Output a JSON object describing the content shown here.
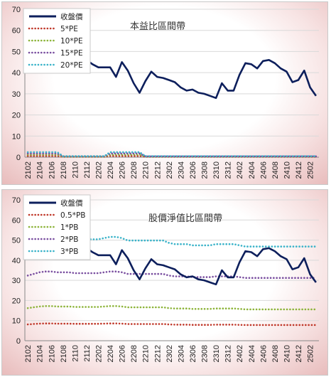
{
  "chart_data": [
    {
      "type": "line",
      "title": "本益比區間帶",
      "ylim": [
        0,
        70
      ],
      "yticks": [
        0,
        10,
        20,
        30,
        40,
        50,
        60,
        70
      ],
      "grid": true,
      "legend": "top-left",
      "categories": [
        "2102",
        "2103",
        "2104",
        "2105",
        "2106",
        "2107",
        "2108",
        "2109",
        "2110",
        "2111",
        "2112",
        "2201",
        "2202",
        "2203",
        "2204",
        "2205",
        "2206",
        "2207",
        "2208",
        "2209",
        "2210",
        "2211",
        "2212",
        "2301",
        "2302",
        "2303",
        "2304",
        "2305",
        "2306",
        "2307",
        "2308",
        "2309",
        "2310",
        "2311",
        "2312",
        "2401",
        "2402",
        "2403",
        "2404",
        "2405",
        "2406",
        "2407",
        "2408",
        "2409",
        "2410",
        "2411",
        "2412",
        "2501",
        "2502",
        "2503"
      ],
      "xtick_labels": [
        "2102",
        "2104",
        "2106",
        "2108",
        "2110",
        "2112",
        "2202",
        "2204",
        "2206",
        "2208",
        "2210",
        "2212",
        "2302",
        "2304",
        "2306",
        "2308",
        "2310",
        "2312",
        "2402",
        "2404",
        "2406",
        "2408",
        "2410",
        "2412",
        "2502"
      ],
      "series": [
        {
          "name": "收盤價",
          "color": "#0d1f5c",
          "style": "solid",
          "values": [
            null,
            null,
            null,
            null,
            null,
            null,
            null,
            null,
            null,
            null,
            46,
            44,
            42.5,
            42.5,
            42.5,
            38,
            45,
            41,
            35,
            30.5,
            36,
            40.5,
            38,
            37.5,
            36.5,
            35.5,
            33,
            31.5,
            32,
            30.5,
            30,
            29,
            28,
            35,
            31.5,
            31.5,
            39,
            44.5,
            44,
            42,
            45.5,
            46,
            44.5,
            42,
            40.5,
            35.5,
            36.5,
            41,
            33,
            29
          ]
        },
        {
          "name": "5*PE",
          "color": "#c0392b",
          "style": "dotted",
          "values": [
            0.6,
            0.6,
            0.6,
            0.6,
            0.6,
            0.6,
            0.2,
            0.2,
            0.2,
            0.2,
            0.2,
            0.2,
            0.2,
            0.2,
            0.6,
            0.6,
            0.6,
            0.6,
            0.6,
            0.6,
            0.2,
            0.2,
            0.2,
            0.2,
            0.2,
            0.2,
            0.2,
            0.2,
            0.2,
            0.2,
            0.2,
            0.2,
            0.2,
            0.2,
            0.2,
            0.2,
            0.2,
            0.2,
            0.2,
            0.2,
            0.2,
            0.2,
            0.2,
            0.2,
            0.2,
            0.2,
            0.2,
            0.2,
            0.2,
            0.2
          ]
        },
        {
          "name": "10*PE",
          "color": "#8db43a",
          "style": "dotted",
          "values": [
            1.2,
            1.2,
            1.2,
            1.2,
            1.2,
            1.2,
            0.3,
            0.3,
            0.3,
            0.3,
            0.3,
            0.3,
            0.3,
            0.3,
            1.2,
            1.2,
            1.2,
            1.2,
            1.2,
            1.2,
            0.3,
            0.3,
            0.3,
            0.3,
            0.3,
            0.3,
            0.3,
            0.3,
            0.3,
            0.3,
            0.3,
            0.3,
            0.3,
            0.3,
            0.3,
            0.3,
            0.3,
            0.3,
            0.3,
            0.3,
            0.3,
            0.3,
            0.3,
            0.3,
            0.3,
            0.3,
            0.3,
            0.3,
            0.3,
            0.3
          ]
        },
        {
          "name": "15*PE",
          "color": "#7a4fa0",
          "style": "dotted",
          "values": [
            1.8,
            1.8,
            1.8,
            1.8,
            1.8,
            1.8,
            0.4,
            0.4,
            0.4,
            0.4,
            0.4,
            0.4,
            0.4,
            0.4,
            1.8,
            1.8,
            1.8,
            1.8,
            1.8,
            1.8,
            0.4,
            0.4,
            0.4,
            0.4,
            0.4,
            0.4,
            0.4,
            0.4,
            0.4,
            0.4,
            0.4,
            0.4,
            0.4,
            0.4,
            0.4,
            0.4,
            0.4,
            0.4,
            0.4,
            0.4,
            0.4,
            0.4,
            0.4,
            0.4,
            0.4,
            0.4,
            0.4,
            0.4,
            0.4,
            0.4
          ]
        },
        {
          "name": "20*PE",
          "color": "#3ab3c9",
          "style": "dotted",
          "values": [
            2.4,
            2.4,
            2.4,
            2.4,
            2.4,
            2.4,
            0.5,
            0.5,
            0.5,
            0.5,
            0.5,
            0.5,
            0.5,
            0.5,
            2.4,
            2.4,
            2.4,
            2.4,
            2.4,
            2.4,
            0.5,
            0.5,
            0.5,
            0.5,
            0.5,
            0.5,
            0.5,
            0.5,
            0.5,
            0.5,
            0.5,
            0.5,
            0.5,
            0.5,
            0.5,
            0.5,
            0.5,
            0.5,
            0.5,
            0.5,
            0.5,
            0.5,
            0.5,
            0.5,
            0.5,
            0.5,
            0.5,
            0.5,
            0.5,
            0.5
          ]
        }
      ]
    },
    {
      "type": "line",
      "title": "股價淨值比區間帶",
      "ylim": [
        0,
        70
      ],
      "yticks": [
        0,
        10,
        20,
        30,
        40,
        50,
        60,
        70
      ],
      "grid": true,
      "legend": "top-left",
      "categories": [
        "2102",
        "2103",
        "2104",
        "2105",
        "2106",
        "2107",
        "2108",
        "2109",
        "2110",
        "2111",
        "2112",
        "2201",
        "2202",
        "2203",
        "2204",
        "2205",
        "2206",
        "2207",
        "2208",
        "2209",
        "2210",
        "2211",
        "2212",
        "2301",
        "2302",
        "2303",
        "2304",
        "2305",
        "2306",
        "2307",
        "2308",
        "2309",
        "2310",
        "2311",
        "2312",
        "2401",
        "2402",
        "2403",
        "2404",
        "2405",
        "2406",
        "2407",
        "2408",
        "2409",
        "2410",
        "2411",
        "2412",
        "2501",
        "2502",
        "2503"
      ],
      "xtick_labels": [
        "2102",
        "2104",
        "2106",
        "2108",
        "2110",
        "2112",
        "2202",
        "2204",
        "2206",
        "2208",
        "2210",
        "2212",
        "2302",
        "2304",
        "2306",
        "2308",
        "2310",
        "2312",
        "2402",
        "2404",
        "2406",
        "2408",
        "2410",
        "2412",
        "2502"
      ],
      "series": [
        {
          "name": "收盤價",
          "color": "#0d1f5c",
          "style": "solid",
          "values": [
            null,
            null,
            null,
            null,
            null,
            null,
            null,
            null,
            null,
            null,
            46,
            44,
            42.5,
            42.5,
            42.5,
            38,
            45,
            41,
            35,
            30.5,
            36,
            40.5,
            38,
            37.5,
            36.5,
            35.5,
            33,
            31.5,
            32,
            30.5,
            30,
            29,
            28,
            35,
            31.5,
            31.5,
            39,
            44.5,
            44,
            42,
            45.5,
            46,
            44.5,
            42,
            40.5,
            35.5,
            36.5,
            41,
            33,
            29
          ]
        },
        {
          "name": "0.5*PB",
          "color": "#c0392b",
          "style": "dotted",
          "values": [
            8.1,
            8.3,
            8.5,
            8.6,
            8.6,
            8.5,
            8.5,
            8.5,
            8.4,
            8.4,
            8.4,
            8.4,
            8.4,
            8.5,
            8.6,
            8.6,
            8.5,
            8.3,
            8.3,
            8.3,
            8.3,
            8.3,
            8.3,
            8.3,
            8.1,
            8.0,
            8.0,
            8.0,
            7.9,
            7.9,
            7.9,
            7.9,
            8.0,
            8.0,
            8.0,
            8.0,
            7.9,
            7.8,
            7.8,
            7.8,
            7.8,
            7.8,
            7.8,
            7.8,
            7.8,
            7.8,
            7.8,
            7.8,
            7.8,
            7.8
          ]
        },
        {
          "name": "1*PB",
          "color": "#8db43a",
          "style": "dotted",
          "values": [
            16.2,
            16.6,
            17.0,
            17.2,
            17.2,
            17.0,
            17.0,
            17.0,
            16.8,
            16.8,
            16.8,
            16.8,
            16.8,
            17.0,
            17.2,
            17.2,
            17.0,
            16.6,
            16.6,
            16.6,
            16.6,
            16.6,
            16.6,
            16.6,
            16.2,
            16.0,
            16.0,
            16.0,
            15.8,
            15.8,
            15.8,
            15.8,
            16.0,
            16.0,
            16.0,
            16.0,
            15.8,
            15.6,
            15.6,
            15.6,
            15.6,
            15.6,
            15.6,
            15.6,
            15.6,
            15.6,
            15.6,
            15.6,
            15.6,
            15.6
          ]
        },
        {
          "name": "2*PB",
          "color": "#7a4fa0",
          "style": "dotted",
          "values": [
            32.4,
            33.2,
            34.0,
            34.4,
            34.4,
            34.0,
            34.0,
            34.0,
            33.6,
            33.6,
            33.6,
            33.6,
            33.6,
            34.0,
            34.4,
            34.4,
            34.0,
            33.2,
            33.2,
            33.2,
            33.2,
            33.2,
            33.2,
            33.2,
            32.4,
            32.0,
            32.0,
            32.0,
            31.6,
            31.6,
            31.6,
            31.6,
            32.0,
            32.0,
            32.0,
            32.0,
            31.6,
            31.2,
            31.2,
            31.2,
            31.2,
            31.2,
            31.2,
            31.2,
            31.2,
            31.2,
            31.2,
            31.2,
            31.2,
            31.2
          ]
        },
        {
          "name": "3*PB",
          "color": "#3ab3c9",
          "style": "dotted",
          "values": [
            48.6,
            49.8,
            51.0,
            51.6,
            51.6,
            51.0,
            51.0,
            51.0,
            50.4,
            50.4,
            50.4,
            50.4,
            50.4,
            51.0,
            51.6,
            51.6,
            51.0,
            49.8,
            49.8,
            49.8,
            49.8,
            49.8,
            49.8,
            49.8,
            48.6,
            48.0,
            48.0,
            48.0,
            47.4,
            47.4,
            47.4,
            47.4,
            48.0,
            48.0,
            48.0,
            48.0,
            47.4,
            46.8,
            46.8,
            46.8,
            46.8,
            46.8,
            46.8,
            46.8,
            46.8,
            46.8,
            46.8,
            46.8,
            46.8,
            46.8
          ]
        }
      ]
    }
  ]
}
